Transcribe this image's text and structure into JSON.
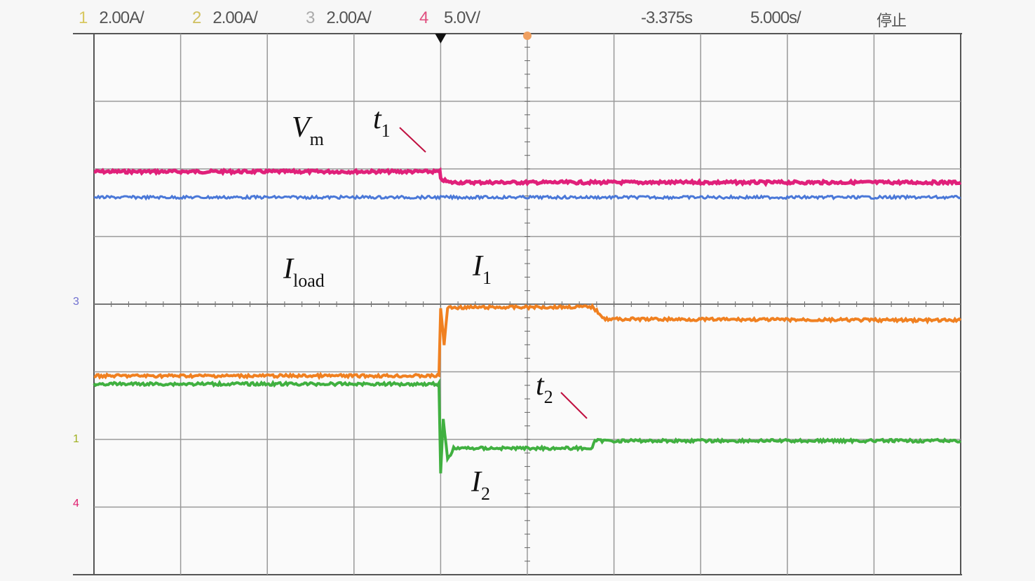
{
  "header": {
    "ch1_num": "1",
    "ch1_scale": "2.00A/",
    "ch2_num": "2",
    "ch2_scale": "2.00A/",
    "ch3_num": "3",
    "ch3_scale": "2.00A/",
    "ch4_num": "4",
    "ch4_scale": "5.0V/",
    "trigger_delay": "-3.375s",
    "timebase": "5.000s/",
    "run_state": "停止"
  },
  "colors": {
    "ch1": "#e8c800",
    "ch2": "#f08020",
    "ch3": "#4070d0",
    "ch4": "#e0207a",
    "green": "#40b040",
    "grid": "#888888"
  },
  "markers": {
    "ch3": "3",
    "ch12": "1",
    "ch4": "4"
  },
  "chart_data": {
    "type": "line",
    "x_unit": "divisions",
    "y_unit": "divisions from top",
    "xlim": [
      0,
      10
    ],
    "ylim": [
      0,
      8
    ],
    "grid": true,
    "annotations": [
      {
        "text": "V",
        "sub": "m"
      },
      {
        "text": "t",
        "sub": "1"
      },
      {
        "text": "I",
        "sub": "load"
      },
      {
        "text": "I",
        "sub": "1"
      },
      {
        "text": "t",
        "sub": "2"
      },
      {
        "text": "I",
        "sub": "2"
      }
    ],
    "series": [
      {
        "name": "Vm",
        "color": "#e0207a",
        "width": 5,
        "points": [
          [
            0,
            2.04
          ],
          [
            3.99,
            2.04
          ],
          [
            4.0,
            2.15
          ],
          [
            4.1,
            2.2
          ],
          [
            10,
            2.2
          ]
        ]
      },
      {
        "name": "ch3",
        "color": "#4a78d8",
        "width": 3,
        "points": [
          [
            0,
            2.42
          ],
          [
            10,
            2.42
          ]
        ]
      },
      {
        "name": "I1",
        "color": "#f08020",
        "width": 4,
        "points": [
          [
            0,
            5.06
          ],
          [
            3.98,
            5.06
          ],
          [
            4.0,
            4.05
          ],
          [
            4.04,
            4.6
          ],
          [
            4.08,
            4.05
          ],
          [
            5.75,
            4.04
          ],
          [
            5.9,
            4.22
          ],
          [
            10,
            4.24
          ]
        ]
      },
      {
        "name": "I2",
        "color": "#40b040",
        "width": 4,
        "points": [
          [
            0,
            5.18
          ],
          [
            3.98,
            5.18
          ],
          [
            4.0,
            6.5
          ],
          [
            4.03,
            5.7
          ],
          [
            4.08,
            6.3
          ],
          [
            4.15,
            6.13
          ],
          [
            5.75,
            6.13
          ],
          [
            5.78,
            6.02
          ],
          [
            10,
            6.02
          ]
        ]
      }
    ]
  }
}
